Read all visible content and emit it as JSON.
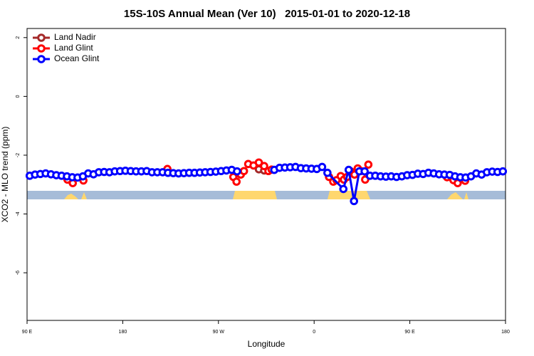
{
  "chart_data": {
    "type": "line",
    "title": "15S-10S Annual Mean (Ver 10)   2015-01-01 to 2020-12-18",
    "xlabel": "Longitude",
    "ylabel": "XCO2 - MLO trend (ppm)",
    "xlim": [
      90,
      540
    ],
    "ylim": [
      -7.62,
      2.31
    ],
    "xticks": [
      {
        "value": 90,
        "label": "90 E"
      },
      180,
      {
        "value": 270,
        "label": "90 W"
      },
      {
        "value": 360,
        "label": "0"
      },
      {
        "value": 450,
        "label": "90 E"
      },
      {
        "value": 540,
        "label": "180"
      }
    ],
    "yticks": [
      2,
      0,
      -2,
      -4,
      -6
    ],
    "legend": "top-left",
    "series": [
      {
        "name": "Land Nadir",
        "color": "#a52a2a",
        "lines": true,
        "x": [
          308,
          313
        ],
        "values": [
          -2.48,
          -2.52
        ]
      },
      {
        "name": "Land Glint",
        "color": "#ff0000",
        "lines": false,
        "x": [
          128,
          133,
          143,
          222,
          284,
          287,
          291,
          294,
          298,
          303,
          308,
          313,
          317,
          320,
          374,
          378,
          381,
          385,
          388,
          391,
          394,
          398,
          401,
          404,
          408,
          411,
          485,
          491,
          495,
          502
        ],
        "values": [
          -2.83,
          -2.95,
          -2.86,
          -2.47,
          -2.74,
          -2.9,
          -2.66,
          -2.54,
          -2.3,
          -2.35,
          -2.25,
          -2.37,
          -2.54,
          -2.49,
          -2.74,
          -2.9,
          -2.85,
          -2.71,
          -2.83,
          -2.74,
          -2.54,
          -2.66,
          -2.45,
          -2.54,
          -2.83,
          -2.32,
          -2.75,
          -2.85,
          -2.95,
          -2.87
        ]
      },
      {
        "name": "Ocean Glint",
        "color": "#0000ff",
        "lines": true,
        "x": [
          92.5,
          97.5,
          102.5,
          107.5,
          112.5,
          117.5,
          122.5,
          127.5,
          132.5,
          137.5,
          142.5,
          147.5,
          152.5,
          157.5,
          162.5,
          167.5,
          172.5,
          177.5,
          182.5,
          187.5,
          192.5,
          197.5,
          202.5,
          207.5,
          212.5,
          217.5,
          222.5,
          227.5,
          232.5,
          237.5,
          242.5,
          247.5,
          252.5,
          257.5,
          262.5,
          267.5,
          272.5,
          277.5,
          282.5,
          287.5,
          305,
          322.5,
          327.5,
          332.5,
          337.5,
          342.5,
          347.5,
          352.5,
          357.5,
          362.5,
          367.5,
          372.5,
          387.5,
          392.5,
          397.5,
          402.5,
          407.5,
          412.5,
          417.5,
          422.5,
          427.5,
          432.5,
          437.5,
          442.5,
          447.5,
          452.5,
          457.5,
          462.5,
          467.5,
          472.5,
          477.5,
          482.5,
          487.5,
          492.5,
          497.5,
          502.5,
          507.5,
          512.5,
          517.5,
          522.5,
          527.5,
          532.5,
          537.5
        ],
        "values": [
          -2.7,
          -2.66,
          -2.64,
          -2.62,
          -2.65,
          -2.68,
          -2.7,
          -2.72,
          -2.75,
          -2.76,
          -2.72,
          -2.62,
          -2.65,
          -2.58,
          -2.57,
          -2.58,
          -2.55,
          -2.54,
          -2.53,
          -2.54,
          -2.55,
          -2.55,
          -2.54,
          -2.58,
          -2.58,
          -2.58,
          -2.6,
          -2.61,
          -2.62,
          -2.61,
          -2.6,
          -2.6,
          -2.59,
          -2.58,
          -2.57,
          -2.56,
          -2.54,
          -2.52,
          -2.5,
          -2.55,
          null,
          -2.5,
          -2.43,
          -2.42,
          -2.41,
          -2.4,
          -2.44,
          -2.45,
          -2.46,
          -2.47,
          -2.4,
          -2.6,
          -3.15,
          -2.5,
          -3.56,
          -2.55,
          -2.55,
          -2.7,
          -2.7,
          -2.72,
          -2.73,
          -2.72,
          -2.74,
          -2.72,
          -2.68,
          -2.67,
          -2.63,
          -2.64,
          -2.6,
          -2.62,
          -2.65,
          -2.66,
          -2.67,
          -2.72,
          -2.75,
          -2.76,
          -2.72,
          -2.62,
          -2.66,
          -2.58,
          -2.56,
          -2.57,
          -2.55
        ]
      }
    ]
  }
}
